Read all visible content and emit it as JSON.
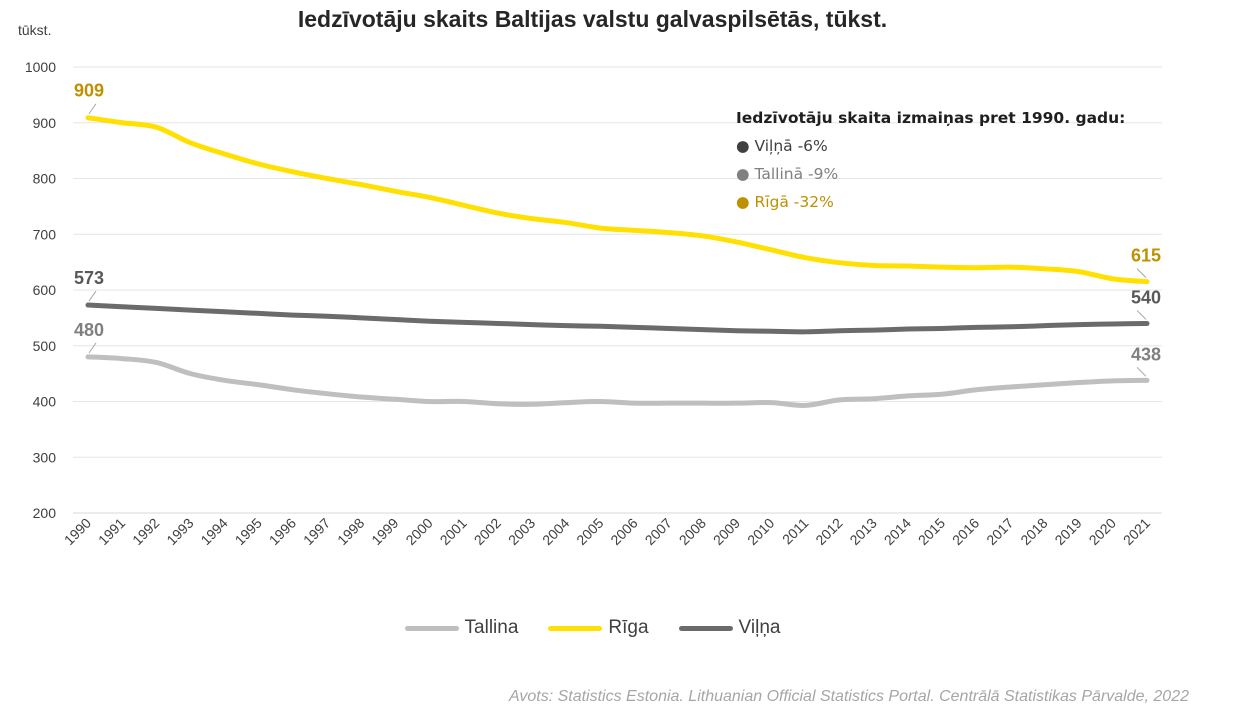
{
  "title": "Iedzīvotāju skaits Baltijas valstu galvaspilsētās, tūkst.",
  "unit_label": "tūkst.",
  "note": {
    "heading": "Iedzīvotāju skaita izmaiņas pret 1990. gadu:",
    "items": [
      {
        "text": "Viļņā -6%",
        "color": "#404040"
      },
      {
        "text": "Tallinā -9%",
        "color": "#808080"
      },
      {
        "text": "Rīgā -32%",
        "color": "#bf9000"
      }
    ]
  },
  "source": "Avots: Statistics Estonia. Lithuanian Official Statistics Portal. Centrālā Statistikas Pārvalde, 2022",
  "chart_data": {
    "type": "line",
    "categories": [
      "1990",
      "1991",
      "1992",
      "1993",
      "1994",
      "1995",
      "1996",
      "1997",
      "1998",
      "1999",
      "2000",
      "2001",
      "2002",
      "2003",
      "2004",
      "2005",
      "2006",
      "2007",
      "2008",
      "2009",
      "2010",
      "2011",
      "2012",
      "2013",
      "2014",
      "2015",
      "2016",
      "2017",
      "2018",
      "2019",
      "2020",
      "2021"
    ],
    "ylim": [
      200,
      1000
    ],
    "yticks": [
      200,
      300,
      400,
      500,
      600,
      700,
      800,
      900,
      1000
    ],
    "grid": true,
    "legend_position": "bottom",
    "series": [
      {
        "name": "Tallina",
        "color": "#bfbfbf",
        "label_color": "#808080",
        "values": [
          480,
          477,
          470,
          450,
          438,
          430,
          421,
          414,
          408,
          404,
          400,
          400,
          396,
          395,
          398,
          400,
          397,
          397,
          397,
          397,
          398,
          393,
          403,
          405,
          410,
          413,
          421,
          426,
          430,
          434,
          437,
          438
        ],
        "end_labels": [
          "480",
          "438"
        ]
      },
      {
        "name": "Rīga",
        "color": "#ffe000",
        "label_color": "#bf9000",
        "values": [
          909,
          900,
          892,
          864,
          844,
          826,
          812,
          800,
          789,
          777,
          766,
          752,
          738,
          728,
          721,
          711,
          707,
          703,
          697,
          686,
          672,
          658,
          649,
          644,
          643,
          641,
          640,
          641,
          638,
          633,
          620,
          615
        ],
        "end_labels": [
          "909",
          "615"
        ]
      },
      {
        "name": "Viļņa",
        "color": "#6d6a6b",
        "label_color": "#595959",
        "values": [
          573,
          570,
          567,
          564,
          561,
          558,
          555,
          553,
          550,
          547,
          544,
          542,
          540,
          538,
          536,
          535,
          533,
          531,
          529,
          527,
          526,
          525,
          527,
          528,
          530,
          531,
          533,
          534,
          536,
          538,
          539,
          540
        ],
        "end_labels": [
          "573",
          "540"
        ]
      }
    ]
  }
}
